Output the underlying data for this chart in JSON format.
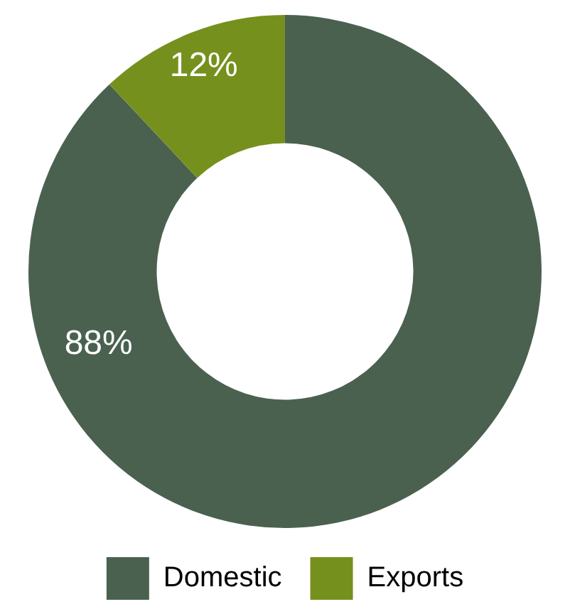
{
  "chart_data": {
    "type": "donut",
    "categories": [
      "Domestic",
      "Exports"
    ],
    "values": [
      88,
      12
    ],
    "colors": [
      "#4a6150",
      "#76901e"
    ],
    "value_labels": [
      "88%",
      "12%"
    ],
    "legend": "bottom"
  }
}
